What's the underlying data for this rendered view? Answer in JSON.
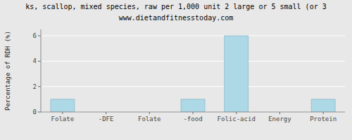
{
  "chart_data": {
    "type": "bar",
    "title": "ks, scallop, mixed species, raw per 1,000 unit 2 large or 5 small (or 3",
    "subtitle": "www.dietandfitnesstoday.com",
    "categories": [
      "Folate",
      "-DFE",
      "Folate",
      "-food",
      "Folic-acid",
      "Energy",
      "Protein"
    ],
    "values": [
      1.0,
      0.0,
      0.0,
      1.0,
      6.0,
      0.0,
      1.0
    ],
    "color": "#add8e6",
    "ylabel": "Percentage of RDH (%)",
    "ylim": [
      0,
      6.5
    ],
    "yticks": [
      0,
      2,
      4,
      6
    ],
    "grid": true
  }
}
